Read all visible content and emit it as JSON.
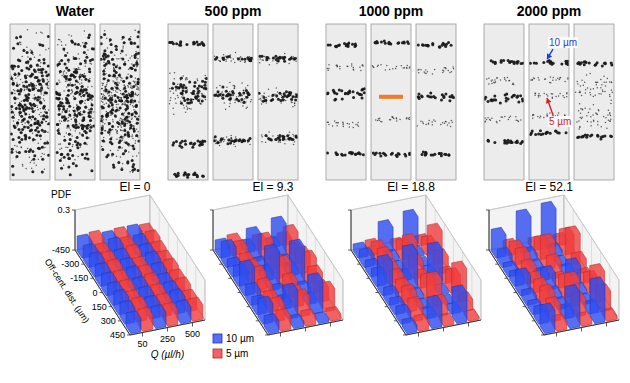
{
  "images": [
    {
      "title": "Water",
      "channels": [
        {
          "bands": [
            {
              "at": 0,
              "spread": 450,
              "particle": 10
            },
            {
              "at": 0,
              "spread": 450,
              "particle": 5
            }
          ]
        },
        {
          "bands": [
            {
              "at": 0,
              "spread": 450,
              "particle": 10
            },
            {
              "at": 0,
              "spread": 450,
              "particle": 5
            }
          ]
        },
        {
          "bands": [
            {
              "at": 0,
              "spread": 450,
              "particle": 10
            },
            {
              "at": 0,
              "spread": 450,
              "particle": 5
            },
            {
              "at": 0,
              "spread": 300,
              "particle": 5
            }
          ]
        }
      ]
    },
    {
      "title": "500 ppm",
      "channels": [
        {
          "bands": [
            {
              "at": -335,
              "spread": 20,
              "particle": 10
            },
            {
              "at": -60,
              "spread": 90,
              "particle": 10
            },
            {
              "at": -60,
              "spread": 140,
              "particle": 5
            },
            {
              "at": 240,
              "spread": 25,
              "particle": 10
            },
            {
              "at": 420,
              "spread": 15,
              "particle": 10
            }
          ]
        },
        {
          "bands": [
            {
              "at": -250,
              "spread": 40,
              "particle": 5
            },
            {
              "at": -250,
              "spread": 15,
              "particle": 10
            },
            {
              "at": -40,
              "spread": 50,
              "particle": 10
            },
            {
              "at": -40,
              "spread": 90,
              "particle": 5
            },
            {
              "at": 220,
              "spread": 25,
              "particle": 10
            },
            {
              "at": 220,
              "spread": 40,
              "particle": 5
            }
          ]
        },
        {
          "bands": [
            {
              "at": -250,
              "spread": 20,
              "particle": 10
            },
            {
              "at": -250,
              "spread": 40,
              "particle": 5
            },
            {
              "at": -30,
              "spread": 70,
              "particle": 5
            },
            {
              "at": -30,
              "spread": 40,
              "particle": 10
            },
            {
              "at": 210,
              "spread": 20,
              "particle": 10
            },
            {
              "at": 210,
              "spread": 40,
              "particle": 5
            }
          ]
        }
      ]
    },
    {
      "title": "1000 ppm",
      "channels": [
        {
          "bands": [
            {
              "at": -330,
              "spread": 15,
              "particle": 10
            },
            {
              "at": -200,
              "spread": 25,
              "particle": 5
            },
            {
              "at": -50,
              "spread": 40,
              "particle": 10
            },
            {
              "at": 130,
              "spread": 25,
              "particle": 5
            },
            {
              "at": 300,
              "spread": 15,
              "particle": 10
            }
          ]
        },
        {
          "bands": [
            {
              "at": -340,
              "spread": 15,
              "particle": 10
            },
            {
              "at": -200,
              "spread": 20,
              "particle": 5
            },
            {
              "at": 100,
              "spread": 25,
              "particle": 5
            },
            {
              "at": 300,
              "spread": 15,
              "particle": 10
            }
          ],
          "scale_bar": {
            "at": -30,
            "color": "#f07a28"
          }
        },
        {
          "bands": [
            {
              "at": -330,
              "spread": 15,
              "particle": 10
            },
            {
              "at": -180,
              "spread": 25,
              "particle": 5
            },
            {
              "at": -30,
              "spread": 25,
              "particle": 10
            },
            {
              "at": 120,
              "spread": 25,
              "particle": 5
            },
            {
              "at": 300,
              "spread": 15,
              "particle": 10
            }
          ]
        }
      ]
    },
    {
      "title": "2000 ppm",
      "channels": [
        {
          "bands": [
            {
              "at": -230,
              "spread": 15,
              "particle": 10
            },
            {
              "at": -120,
              "spread": 25,
              "particle": 5
            },
            {
              "at": -20,
              "spread": 30,
              "particle": 10
            },
            {
              "at": 100,
              "spread": 25,
              "particle": 5
            },
            {
              "at": 230,
              "spread": 15,
              "particle": 10
            }
          ]
        },
        {
          "bands": [
            {
              "at": -230,
              "spread": 15,
              "particle": 10
            },
            {
              "at": -130,
              "spread": 25,
              "particle": 5
            },
            {
              "at": -40,
              "spread": 25,
              "particle": 5
            },
            {
              "at": 80,
              "spread": 25,
              "particle": 5
            },
            {
              "at": 180,
              "spread": 15,
              "particle": 10
            }
          ],
          "annotations": [
            {
              "text": "10 µm",
              "color": "#1f3fd6",
              "at": -230
            },
            {
              "text": "5 µm",
              "color": "#d62020",
              "at": -40
            }
          ]
        },
        {
          "bands": [
            {
              "at": -220,
              "spread": 15,
              "particle": 10
            },
            {
              "at": -80,
              "spread": 90,
              "particle": 5
            },
            {
              "at": 80,
              "spread": 90,
              "particle": 5
            },
            {
              "at": 200,
              "spread": 15,
              "particle": 10
            }
          ]
        }
      ]
    }
  ],
  "chart_data": [
    {
      "type": "bar3d",
      "title": "El = 0",
      "x_label": "Off-cent. dist. (µm)",
      "y_label": "PDF",
      "q_label": "Q (µl/h)",
      "bins": [
        -450,
        -350,
        -250,
        -150,
        -50,
        50,
        150,
        250,
        350,
        450
      ],
      "xlim": [
        -450,
        450
      ],
      "xticks": [
        -450,
        -300,
        -150,
        0,
        150,
        300,
        450
      ],
      "ylim": [
        0,
        0.3
      ],
      "yticks": [
        0.3
      ],
      "categories": [
        50,
        250,
        500
      ],
      "legend": "lower right",
      "series": [
        {
          "name": "10 µm",
          "color": "#2d4cf0",
          "values": [
            [
              0.11,
              0.11,
              0.12,
              0.11,
              0.11,
              0.11,
              0.12,
              0.11,
              0.1
            ],
            [
              0.1,
              0.12,
              0.11,
              0.11,
              0.12,
              0.11,
              0.11,
              0.11,
              0.11
            ],
            [
              0.11,
              0.11,
              0.11,
              0.12,
              0.11,
              0.1,
              0.11,
              0.12,
              0.11
            ]
          ]
        },
        {
          "name": "5 µm",
          "color": "#f03c3c",
          "values": [
            [
              0.12,
              0.1,
              0.11,
              0.12,
              0.11,
              0.11,
              0.1,
              0.12,
              0.11
            ],
            [
              0.11,
              0.11,
              0.12,
              0.1,
              0.11,
              0.12,
              0.11,
              0.11,
              0.11
            ],
            [
              0.1,
              0.12,
              0.11,
              0.11,
              0.12,
              0.11,
              0.12,
              0.1,
              0.11
            ]
          ]
        }
      ]
    },
    {
      "type": "bar3d",
      "title": "El = 9.3",
      "bins": [
        -450,
        -350,
        -250,
        -150,
        -50,
        50,
        150,
        250,
        350,
        450
      ],
      "xlim": [
        -450,
        450
      ],
      "xticks": [
        -450,
        -300,
        -150,
        0,
        150,
        300,
        450
      ],
      "ylim": [
        0,
        0.3
      ],
      "yticks": [
        0.3
      ],
      "categories": [
        50,
        250,
        500
      ],
      "tick_labels": false,
      "series": [
        {
          "color": "#2d4cf0",
          "values": [
            [
              0.08,
              0.14,
              0.08,
              0.1,
              0.2,
              0.1,
              0.08,
              0.14,
              0.08
            ],
            [
              0.04,
              0.2,
              0.05,
              0.06,
              0.28,
              0.06,
              0.05,
              0.2,
              0.04
            ],
            [
              0.02,
              0.24,
              0.03,
              0.04,
              0.28,
              0.04,
              0.03,
              0.24,
              0.02
            ]
          ]
        },
        {
          "color": "#f03c3c",
          "values": [
            [
              0.1,
              0.12,
              0.1,
              0.12,
              0.14,
              0.12,
              0.1,
              0.12,
              0.1
            ],
            [
              0.06,
              0.14,
              0.1,
              0.12,
              0.18,
              0.12,
              0.1,
              0.14,
              0.06
            ],
            [
              0.04,
              0.16,
              0.1,
              0.14,
              0.18,
              0.14,
              0.1,
              0.16,
              0.04
            ]
          ]
        }
      ]
    },
    {
      "type": "bar3d",
      "title": "El = 18.8",
      "bins": [
        -450,
        -350,
        -250,
        -150,
        -50,
        50,
        150,
        250,
        350,
        450
      ],
      "xlim": [
        -450,
        450
      ],
      "xticks": [
        -450,
        -300,
        -150,
        0,
        150,
        300,
        450
      ],
      "ylim": [
        0,
        0.3
      ],
      "yticks": [
        0.3
      ],
      "categories": [
        50,
        250,
        500
      ],
      "tick_labels": false,
      "series": [
        {
          "color": "#2d4cf0",
          "values": [
            [
              0.05,
              0.08,
              0.07,
              0.08,
              0.24,
              0.08,
              0.07,
              0.08,
              0.05
            ],
            [
              0.18,
              0.03,
              0.02,
              0.03,
              0.28,
              0.03,
              0.02,
              0.03,
              0.18
            ],
            [
              0.22,
              0.02,
              0.01,
              0.02,
              0.26,
              0.02,
              0.01,
              0.02,
              0.22
            ]
          ]
        },
        {
          "color": "#f03c3c",
          "values": [
            [
              0.06,
              0.12,
              0.14,
              0.12,
              0.12,
              0.12,
              0.14,
              0.12,
              0.06
            ],
            [
              0.03,
              0.1,
              0.2,
              0.12,
              0.08,
              0.12,
              0.2,
              0.1,
              0.03
            ],
            [
              0.02,
              0.08,
              0.24,
              0.12,
              0.06,
              0.12,
              0.24,
              0.08,
              0.02
            ]
          ]
        }
      ]
    },
    {
      "type": "bar3d",
      "title": "El = 52.1",
      "bins": [
        -450,
        -350,
        -250,
        -150,
        -50,
        50,
        150,
        250,
        350,
        450
      ],
      "xlim": [
        -450,
        450
      ],
      "xticks": [
        -450,
        -300,
        -150,
        0,
        150,
        300,
        450
      ],
      "ylim": [
        0,
        0.3
      ],
      "yticks": [
        0.3
      ],
      "categories": [
        50,
        250,
        500
      ],
      "tick_labels": false,
      "series": [
        {
          "color": "#2d4cf0",
          "values": [
            [
              0.16,
              0.08,
              0.05,
              0.06,
              0.14,
              0.06,
              0.05,
              0.08,
              0.16
            ],
            [
              0.26,
              0.05,
              0.03,
              0.04,
              0.12,
              0.04,
              0.03,
              0.05,
              0.26
            ],
            [
              0.28,
              0.04,
              0.02,
              0.03,
              0.14,
              0.03,
              0.02,
              0.04,
              0.28
            ]
          ]
        },
        {
          "color": "#f03c3c",
          "values": [
            [
              0.06,
              0.12,
              0.14,
              0.12,
              0.1,
              0.12,
              0.14,
              0.12,
              0.06
            ],
            [
              0.04,
              0.12,
              0.2,
              0.12,
              0.06,
              0.12,
              0.2,
              0.12,
              0.04
            ],
            [
              0.03,
              0.14,
              0.22,
              0.1,
              0.05,
              0.1,
              0.22,
              0.14,
              0.03
            ]
          ]
        }
      ]
    }
  ]
}
